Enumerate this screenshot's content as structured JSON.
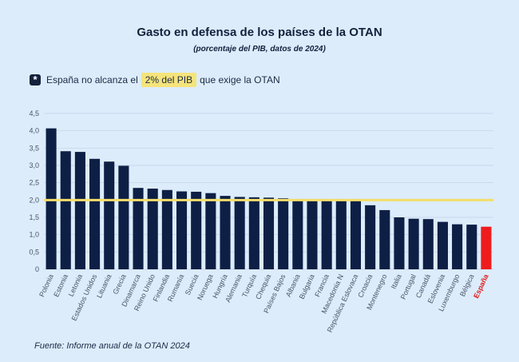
{
  "chart_data": {
    "type": "bar",
    "title": "Gasto en defensa de los países de la OTAN",
    "subtitle": "(porcentaje del PIB, datos de 2024)",
    "categories": [
      "Polonia",
      "Estonia",
      "Letonia",
      "Estados Unidos",
      "Lituania",
      "Grecia",
      "Dinamarca",
      "Reino Unido",
      "Finlandia",
      "Rumanía",
      "Suecia",
      "Noruega",
      "Hungría",
      "Alemania",
      "Turquía",
      "Chequia",
      "Países Bajos",
      "Albania",
      "Bulgaria",
      "Francia",
      "Macedonia N",
      "República Eslovaca",
      "Croacia",
      "Montenegro",
      "Italia",
      "Portugal",
      "Canadá",
      "Eslovenia",
      "Luxemburgo",
      "Bélgica",
      "España"
    ],
    "values": [
      4.07,
      3.41,
      3.39,
      3.19,
      3.11,
      2.99,
      2.35,
      2.33,
      2.29,
      2.25,
      2.24,
      2.2,
      2.12,
      2.09,
      2.08,
      2.07,
      2.05,
      2.03,
      2.03,
      2.02,
      2.0,
      2.0,
      1.85,
      1.71,
      1.5,
      1.46,
      1.45,
      1.37,
      1.3,
      1.29,
      1.23
    ],
    "ylim": [
      0,
      4.5
    ],
    "yticks": [
      "0",
      "0,5",
      "1,0",
      "1,5",
      "2,0",
      "2,5",
      "3,0",
      "3,5",
      "4,0",
      "4,5"
    ],
    "reference_line": 2.0,
    "highlight_category": "España",
    "grid": true,
    "colors": {
      "bar": "#0d1f45",
      "highlight_bar": "#ee1c1c",
      "reference_line": "#f3de6a",
      "highlight_label": "#e21b1b"
    }
  },
  "note": {
    "icon": "asterisk-icon",
    "prefix": "España no alcanza el",
    "highlight": "2% del PIB",
    "suffix": "que exige la OTAN"
  },
  "source": "Fuente: Informe anual de la OTAN 2024"
}
